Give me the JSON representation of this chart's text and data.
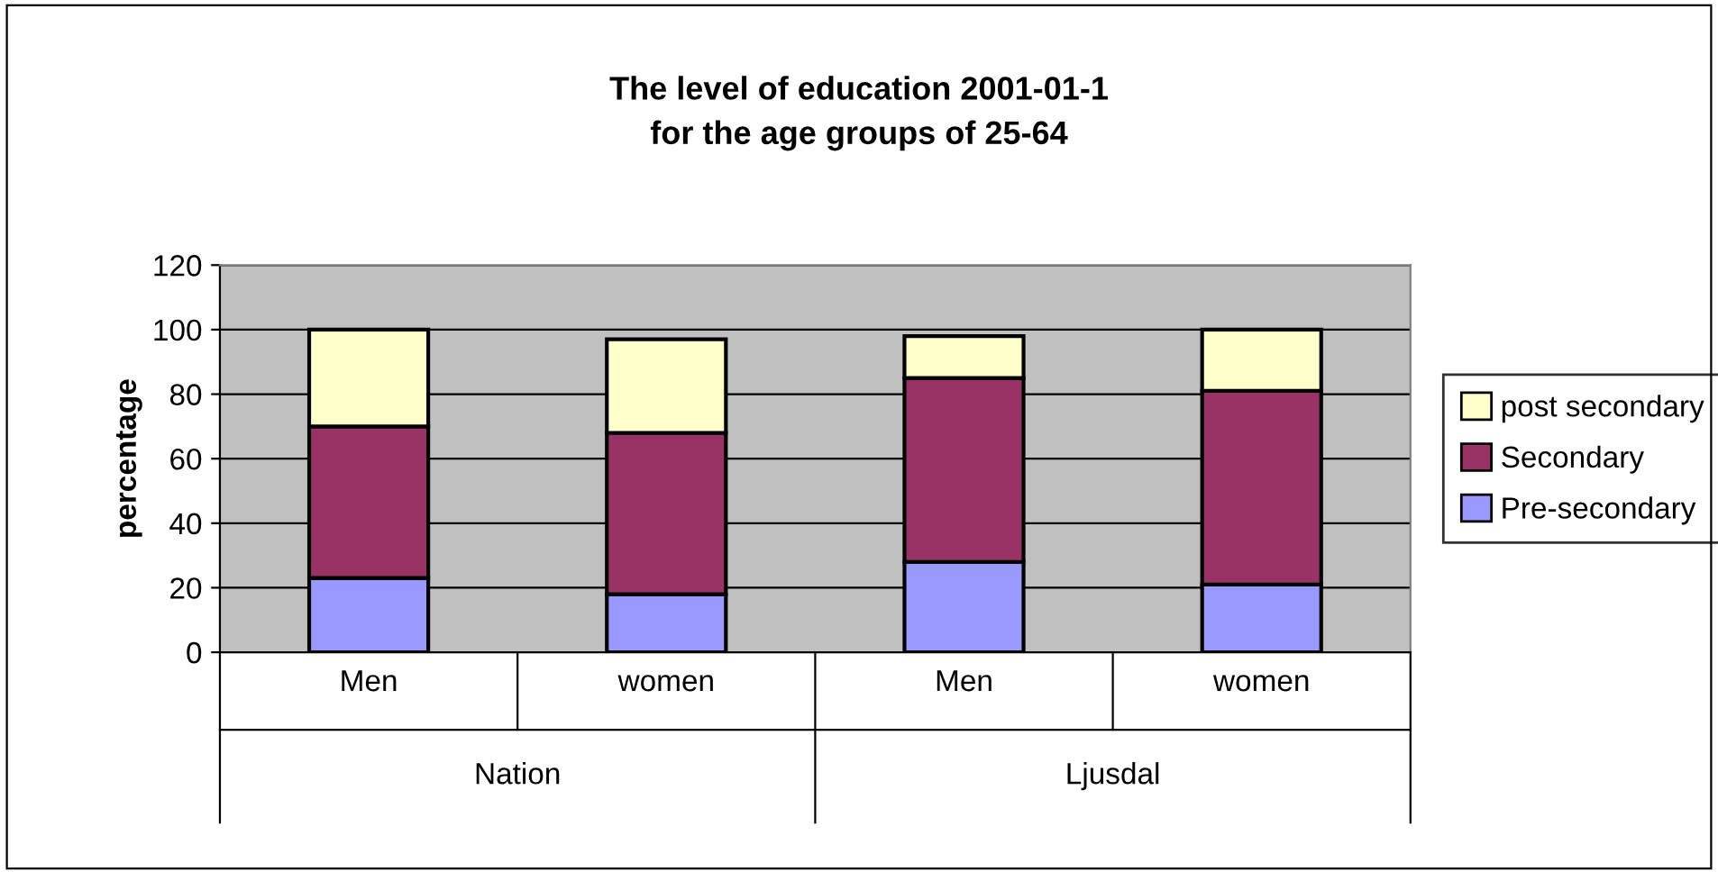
{
  "chart_data": {
    "type": "bar",
    "stacked": true,
    "title": "The level of education 2001-01-1\nfor the age groups of 25-64",
    "ylabel": "percentage",
    "categories": [
      "Men",
      "women",
      "Men",
      "women"
    ],
    "annotations": [
      "Nation",
      "Ljusdal"
    ],
    "series": [
      {
        "name": "Pre-secondary",
        "color": "#9999ff",
        "values": [
          23,
          18,
          28,
          21
        ]
      },
      {
        "name": "Secondary",
        "color": "#993366",
        "values": [
          47,
          50,
          57,
          60
        ]
      },
      {
        "name": "post secondary",
        "color": "#ffffcc",
        "values": [
          30,
          29,
          13,
          19
        ]
      }
    ],
    "ylim": [
      0,
      120
    ],
    "yticks": [
      0,
      20,
      40,
      60,
      80,
      100,
      120
    ],
    "grid": "y",
    "legend": "right"
  }
}
